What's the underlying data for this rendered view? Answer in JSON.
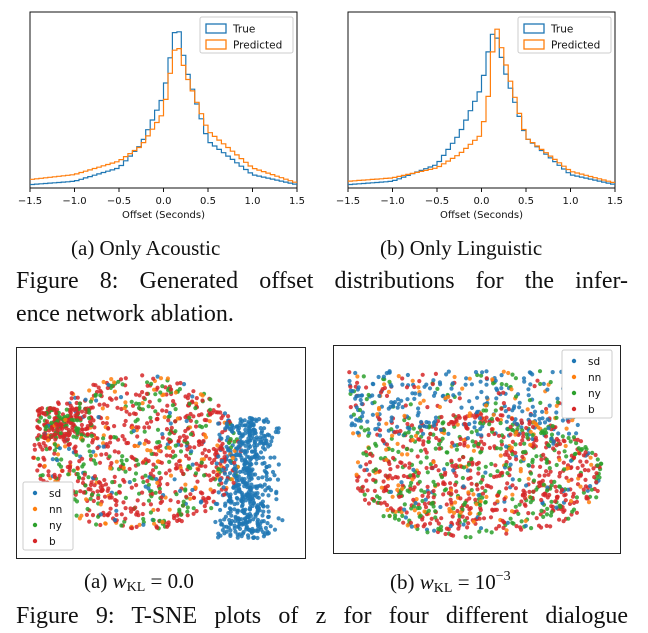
{
  "figure8": {
    "panels": [
      {
        "id": "a",
        "subcaption": "(a) Only Acoustic",
        "xlabel": "Offset (Seconds)",
        "legend": [
          "True",
          "Predicted"
        ],
        "xticks": [
          "−1.5",
          "−1.0",
          "−0.5",
          "0.0",
          "0.5",
          "1.0",
          "1.5"
        ]
      },
      {
        "id": "b",
        "subcaption": "(b) Only Linguistic",
        "xlabel": "Offset (Seconds)",
        "legend": [
          "True",
          "Predicted"
        ],
        "xticks": [
          "−1.5",
          "−1.0",
          "−0.5",
          "0.0",
          "0.5",
          "1.0",
          "1.5"
        ]
      }
    ],
    "caption_line1": "Figure 8:  Generated offset distributions for the infer-",
    "caption_line2": "ence network ablation."
  },
  "figure9": {
    "panels": [
      {
        "id": "a",
        "legend": [
          "sd",
          "nn",
          "ny",
          "b"
        ]
      },
      {
        "id": "b",
        "legend": [
          "sd",
          "nn",
          "ny",
          "b"
        ]
      }
    ],
    "subcaption_a_prefix": "(a) ",
    "subcaption_a_value": " = 0.0",
    "subcaption_b_prefix": "(b) ",
    "subcaption_b_value": " = 10",
    "w_symbol": "w",
    "w_sub": "KL",
    "b_exponent": "−3",
    "caption_partial": "Figure 9: T-SNE plots of z for four different dialogue"
  },
  "colors": {
    "true": "#1f77b4",
    "predicted": "#ff7f0e",
    "sd": "#1f77b4",
    "nn": "#ff7f0e",
    "ny": "#2ca02c",
    "b": "#d62728"
  },
  "chart_data": [
    {
      "type": "area",
      "name": "(a) Only Acoustic",
      "xlabel": "Offset (Seconds)",
      "xlim": [
        -1.5,
        1.5
      ],
      "legend_position": "top-right",
      "series": [
        {
          "name": "True",
          "x": [
            -1.5,
            -1.0,
            -0.5,
            -0.25,
            0.0,
            0.1,
            0.15,
            0.25,
            0.5,
            1.0,
            1.5
          ],
          "values": [
            0.02,
            0.04,
            0.12,
            0.26,
            0.55,
            0.85,
            1.0,
            0.72,
            0.28,
            0.08,
            0.02
          ]
        },
        {
          "name": "Predicted",
          "x": [
            -1.5,
            -1.0,
            -0.5,
            -0.25,
            0.0,
            0.1,
            0.15,
            0.25,
            0.5,
            1.0,
            1.5
          ],
          "values": [
            0.05,
            0.08,
            0.16,
            0.25,
            0.45,
            0.76,
            0.88,
            0.68,
            0.34,
            0.12,
            0.03
          ]
        }
      ]
    },
    {
      "type": "area",
      "name": "(b) Only Linguistic",
      "xlabel": "Offset (Seconds)",
      "xlim": [
        -1.5,
        1.5
      ],
      "legend_position": "top-right",
      "series": [
        {
          "name": "True",
          "x": [
            -1.5,
            -1.0,
            -0.5,
            -0.25,
            0.0,
            0.1,
            0.15,
            0.25,
            0.5,
            1.0,
            1.5
          ],
          "values": [
            0.02,
            0.04,
            0.14,
            0.32,
            0.6,
            0.88,
            0.95,
            0.72,
            0.3,
            0.08,
            0.02
          ]
        },
        {
          "name": "Predicted",
          "x": [
            -1.5,
            -1.0,
            -0.5,
            -0.25,
            0.0,
            0.1,
            0.15,
            0.25,
            0.5,
            1.0,
            1.5
          ],
          "values": [
            0.04,
            0.06,
            0.12,
            0.2,
            0.32,
            0.62,
            1.0,
            0.78,
            0.3,
            0.1,
            0.03
          ]
        }
      ]
    },
    {
      "type": "scatter",
      "name": "T-SNE (a)",
      "legend_position": "bottom-left",
      "series": [
        {
          "name": "sd"
        },
        {
          "name": "nn"
        },
        {
          "name": "ny"
        },
        {
          "name": "b"
        }
      ]
    },
    {
      "type": "scatter",
      "name": "T-SNE (b)",
      "legend_position": "top-right",
      "series": [
        {
          "name": "sd"
        },
        {
          "name": "nn"
        },
        {
          "name": "ny"
        },
        {
          "name": "b"
        }
      ]
    }
  ]
}
